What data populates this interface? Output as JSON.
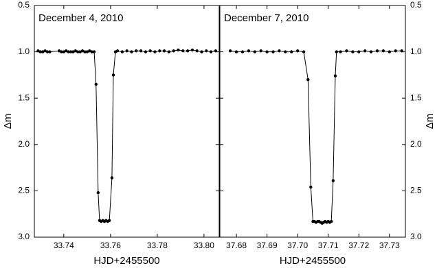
{
  "chart_data": [
    {
      "type": "scatter",
      "annotation": "December 4, 2010",
      "xlabel": "HJD+2455500",
      "ylabel": "Δm",
      "y_axis_side": "left",
      "color": "#000000",
      "x": [
        33.729,
        33.73,
        33.731,
        33.732,
        33.733,
        33.734,
        33.738,
        33.739,
        33.74,
        33.741,
        33.742,
        33.743,
        33.744,
        33.745,
        33.746,
        33.747,
        33.748,
        33.749,
        33.75,
        33.751,
        33.752,
        33.753,
        33.7538,
        33.7547,
        33.7553,
        33.756,
        33.7567,
        33.7574,
        33.7581,
        33.7588,
        33.7595,
        33.7606,
        33.7612,
        33.7621,
        33.763,
        33.765,
        33.767,
        33.769,
        33.771,
        33.773,
        33.775,
        33.777,
        33.779,
        33.781,
        33.783,
        33.785,
        33.787,
        33.789,
        33.791,
        33.793,
        33.795,
        33.797,
        33.799,
        33.801,
        33.803,
        33.805
      ],
      "values": [
        0.99,
        1.0,
        1.0,
        0.99,
        1.0,
        1.0,
        0.99,
        1.0,
        1.0,
        0.99,
        1.0,
        1.0,
        1.0,
        0.99,
        1.0,
        1.0,
        0.99,
        1.0,
        1.0,
        0.99,
        1.0,
        1.0,
        1.35,
        2.52,
        2.82,
        2.83,
        2.82,
        2.83,
        2.82,
        2.83,
        2.82,
        2.36,
        1.25,
        1.0,
        0.99,
        1.0,
        0.99,
        1.0,
        0.99,
        0.99,
        1.0,
        0.99,
        1.0,
        0.99,
        0.99,
        1.0,
        0.99,
        0.98,
        0.99,
        0.99,
        0.98,
        0.99,
        1.0,
        0.99,
        1.0,
        0.99
      ],
      "xlim": [
        33.7274,
        33.8065
      ],
      "xticks": [
        33.74,
        33.76,
        33.78,
        {
          "value": 33.8,
          "label": "33.80"
        }
      ],
      "ylim": [
        3,
        0.5
      ],
      "yticks": [
        0.5,
        {
          "value": 1,
          "label": "1.0"
        },
        1.5,
        {
          "value": 2,
          "label": "2.0"
        },
        2.5,
        {
          "value": 3,
          "label": "3.0"
        }
      ]
    },
    {
      "type": "scatter",
      "annotation": "December 7, 2010",
      "xlabel": "HJD+2455500",
      "ylabel": "Δm",
      "y_axis_side": "right",
      "color": "#000000",
      "x": [
        37.678,
        37.68,
        37.682,
        37.684,
        37.686,
        37.688,
        37.69,
        37.692,
        37.694,
        37.696,
        37.698,
        37.7,
        37.702,
        37.7034,
        37.7043,
        37.705,
        37.7055,
        37.706,
        37.7065,
        37.707,
        37.7075,
        37.708,
        37.7085,
        37.709,
        37.7095,
        37.71,
        37.7105,
        37.711,
        37.7116,
        37.7123,
        37.7127,
        37.714,
        37.716,
        37.718,
        37.72,
        37.722,
        37.724,
        37.726,
        37.728,
        37.73,
        37.732,
        37.734
      ],
      "values": [
        0.99,
        1.0,
        1.0,
        0.99,
        1.0,
        0.99,
        1.0,
        1.0,
        0.99,
        1.0,
        1.0,
        0.99,
        1.0,
        1.3,
        2.46,
        2.83,
        2.83,
        2.84,
        2.83,
        2.83,
        2.84,
        2.85,
        2.84,
        2.83,
        2.84,
        2.83,
        2.84,
        2.83,
        2.39,
        1.26,
        1.0,
        1.0,
        0.99,
        1.0,
        1.0,
        0.99,
        1.0,
        0.99,
        0.99,
        1.0,
        0.99,
        0.99
      ],
      "xlim": [
        37.6746,
        37.7352
      ],
      "xticks": [
        37.68,
        37.69,
        {
          "value": 37.7,
          "label": "37.70"
        },
        37.71,
        37.72,
        37.73
      ],
      "ylim": [
        3,
        0.5
      ],
      "yticks": [
        0.5,
        {
          "value": 1,
          "label": "1.0"
        },
        1.5,
        {
          "value": 2,
          "label": "2.0"
        },
        2.5,
        {
          "value": 3,
          "label": "3.0"
        }
      ]
    }
  ]
}
